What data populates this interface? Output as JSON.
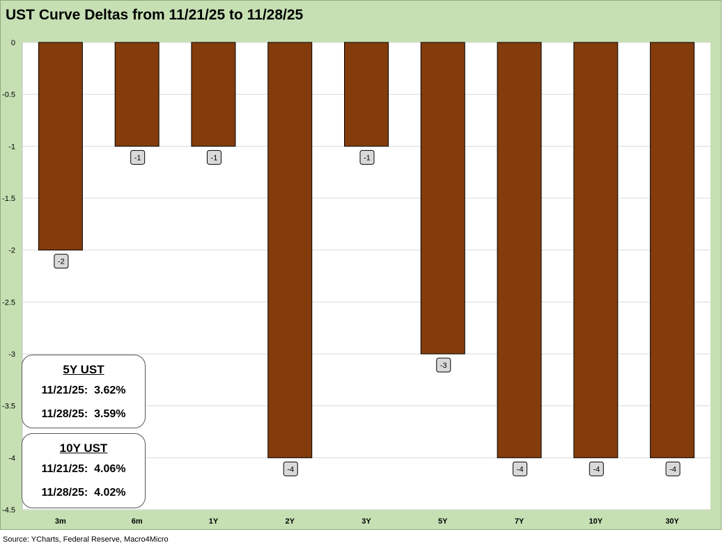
{
  "title": "UST Curve Deltas from 11/21/25 to 11/28/25",
  "source": "Source: YCharts, Federal Reserve, Macro4Micro",
  "colors": {
    "bar": "#843c0c",
    "frame": "#c6e0b4",
    "grid": "#d9d9d9"
  },
  "chart_data": {
    "type": "bar",
    "categories": [
      "3m",
      "6m",
      "1Y",
      "2Y",
      "3Y",
      "5Y",
      "7Y",
      "10Y",
      "30Y"
    ],
    "values": [
      -2,
      -1,
      -1,
      -4,
      -1,
      -3,
      -4,
      -4,
      -4
    ],
    "data_labels": [
      "-2",
      "-1",
      "-1",
      "-4",
      "-1",
      "-3",
      "-4",
      "-4",
      "-4"
    ],
    "yticks": [
      0,
      -0.5,
      -1,
      -1.5,
      -2,
      -2.5,
      -3,
      -3.5,
      -4,
      -4.5
    ],
    "ytick_labels": [
      "0",
      "-0.5",
      "-1",
      "-1.5",
      "-2",
      "-2.5",
      "-3",
      "-3.5",
      "-4",
      "-4.5"
    ],
    "ylim": [
      -4.5,
      0
    ],
    "grid": true,
    "legend": "none",
    "title": "UST Curve Deltas from 11/21/25 to 11/28/25"
  },
  "boxes": [
    {
      "header": "5Y UST",
      "line1": "11/21/25:  3.62%",
      "line2": "11/28/25:  3.59%"
    },
    {
      "header": "10Y UST",
      "line1": "11/21/25:  4.06%",
      "line2": "11/28/25:  4.02%"
    }
  ]
}
